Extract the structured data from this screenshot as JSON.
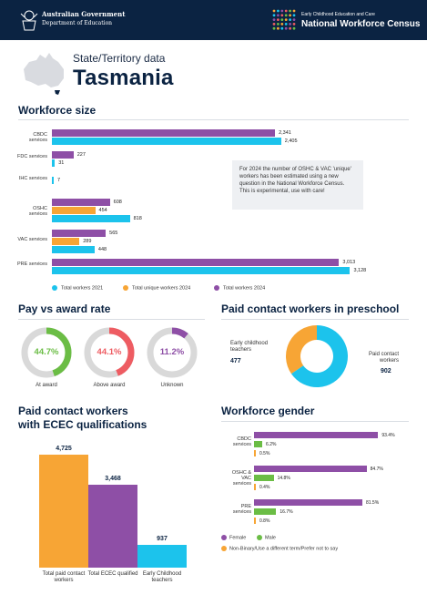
{
  "header": {
    "gov_line1": "Australian Government",
    "gov_line2": "Department of Education",
    "census_line1": "Early Childhood Education and Care",
    "census_line2": "National Workforce Census"
  },
  "page": {
    "subtitle": "State/Territory data",
    "title": "Tasmania"
  },
  "colors": {
    "navy": "#0b2342",
    "purple": "#8e4fa6",
    "orange": "#f7a535",
    "cyan": "#1cc3ec",
    "green": "#6bbd45",
    "red": "#ee5c62",
    "grey": "#d9d9d9"
  },
  "workforce_size": {
    "title": "Workforce size",
    "note": "For 2024 the number of OSHC & VAC 'unique' workers has been estimated using a new question in the National Workforce Census. This is experimental, use with care!",
    "legend": [
      "Total workers 2021",
      "Total unique workers 2024",
      "Total workers 2024"
    ]
  },
  "pay": {
    "title": "Pay vs award rate"
  },
  "preschool": {
    "title": "Paid contact workers in preschool",
    "ec_label": "Early childhood teachers",
    "ec_value": "477",
    "paid_label": "Paid contact workers",
    "paid_value": "902"
  },
  "ecec": {
    "title_line1": "Paid contact workers",
    "title_line2": "with ECEC qualifications"
  },
  "gender": {
    "title": "Workforce gender",
    "legend_female": "Female",
    "legend_male": "Male",
    "legend_other": "Non-Binary/Use a different term/Prefer not to say"
  },
  "chart_data": [
    {
      "type": "bar",
      "orientation": "horizontal",
      "title": "Workforce size",
      "categories": [
        "CBDC services",
        "FDC services",
        "IHC services",
        "OSHC services",
        "VAC services",
        "PRE services"
      ],
      "series": [
        {
          "name": "Total workers 2024",
          "values": [
            2341,
            227,
            null,
            608,
            565,
            3013
          ],
          "labels": [
            "2,341",
            "227",
            "",
            "608",
            "565",
            "3,013"
          ]
        },
        {
          "name": "Total unique workers 2024",
          "values": [
            null,
            null,
            null,
            454,
            289,
            null
          ],
          "labels": [
            "",
            "",
            "",
            "454",
            "289",
            ""
          ]
        },
        {
          "name": "Total workers 2021",
          "values": [
            2405,
            31,
            7,
            818,
            448,
            3128
          ],
          "labels": [
            "2,405",
            "31",
            "7",
            "818",
            "448",
            "3,128"
          ]
        }
      ]
    },
    {
      "type": "pie",
      "title": "Pay vs award rate",
      "items": [
        {
          "label": "At award",
          "value": 44.7,
          "display": "44.7%",
          "color": "#6bbd45"
        },
        {
          "label": "Above award",
          "value": 44.1,
          "display": "44.1%",
          "color": "#ee5c62"
        },
        {
          "label": "Unknown",
          "value": 11.2,
          "display": "11.2%",
          "color": "#8e4fa6"
        }
      ]
    },
    {
      "type": "pie",
      "title": "Paid contact workers in preschool",
      "slices": [
        {
          "label": "Early childhood teachers",
          "value": 477,
          "color": "#f7a535"
        },
        {
          "label": "Paid contact workers",
          "value": 902,
          "color": "#1cc3ec"
        }
      ]
    },
    {
      "type": "bar",
      "title": "Paid contact workers with ECEC qualifications",
      "categories": [
        "Total paid contact workers",
        "Total ECEC qualified",
        "Early Childhood teachers"
      ],
      "values": [
        4725,
        3468,
        937
      ],
      "labels": [
        "4,725",
        "3,468",
        "937"
      ],
      "colors": [
        "#f7a535",
        "#8e4fa6",
        "#1cc3ec"
      ]
    },
    {
      "type": "bar",
      "orientation": "horizontal",
      "title": "Workforce gender",
      "categories": [
        "CBDC services",
        "OSHC & VAC services",
        "PRE services"
      ],
      "series": [
        {
          "name": "Female",
          "values": [
            93.4,
            84.7,
            81.5
          ],
          "labels": [
            "93.4%",
            "84.7%",
            "81.5%"
          ],
          "color": "#8e4fa6"
        },
        {
          "name": "Male",
          "values": [
            6.2,
            14.8,
            16.7
          ],
          "labels": [
            "6.2%",
            "14.8%",
            "16.7%"
          ],
          "color": "#6bbd45"
        },
        {
          "name": "Non-Binary/Use a different term/Prefer not to say",
          "values": [
            0.5,
            0.4,
            0.8
          ],
          "labels": [
            "0.5%",
            "0.4%",
            "0.8%"
          ],
          "color": "#f7a535"
        }
      ]
    }
  ]
}
